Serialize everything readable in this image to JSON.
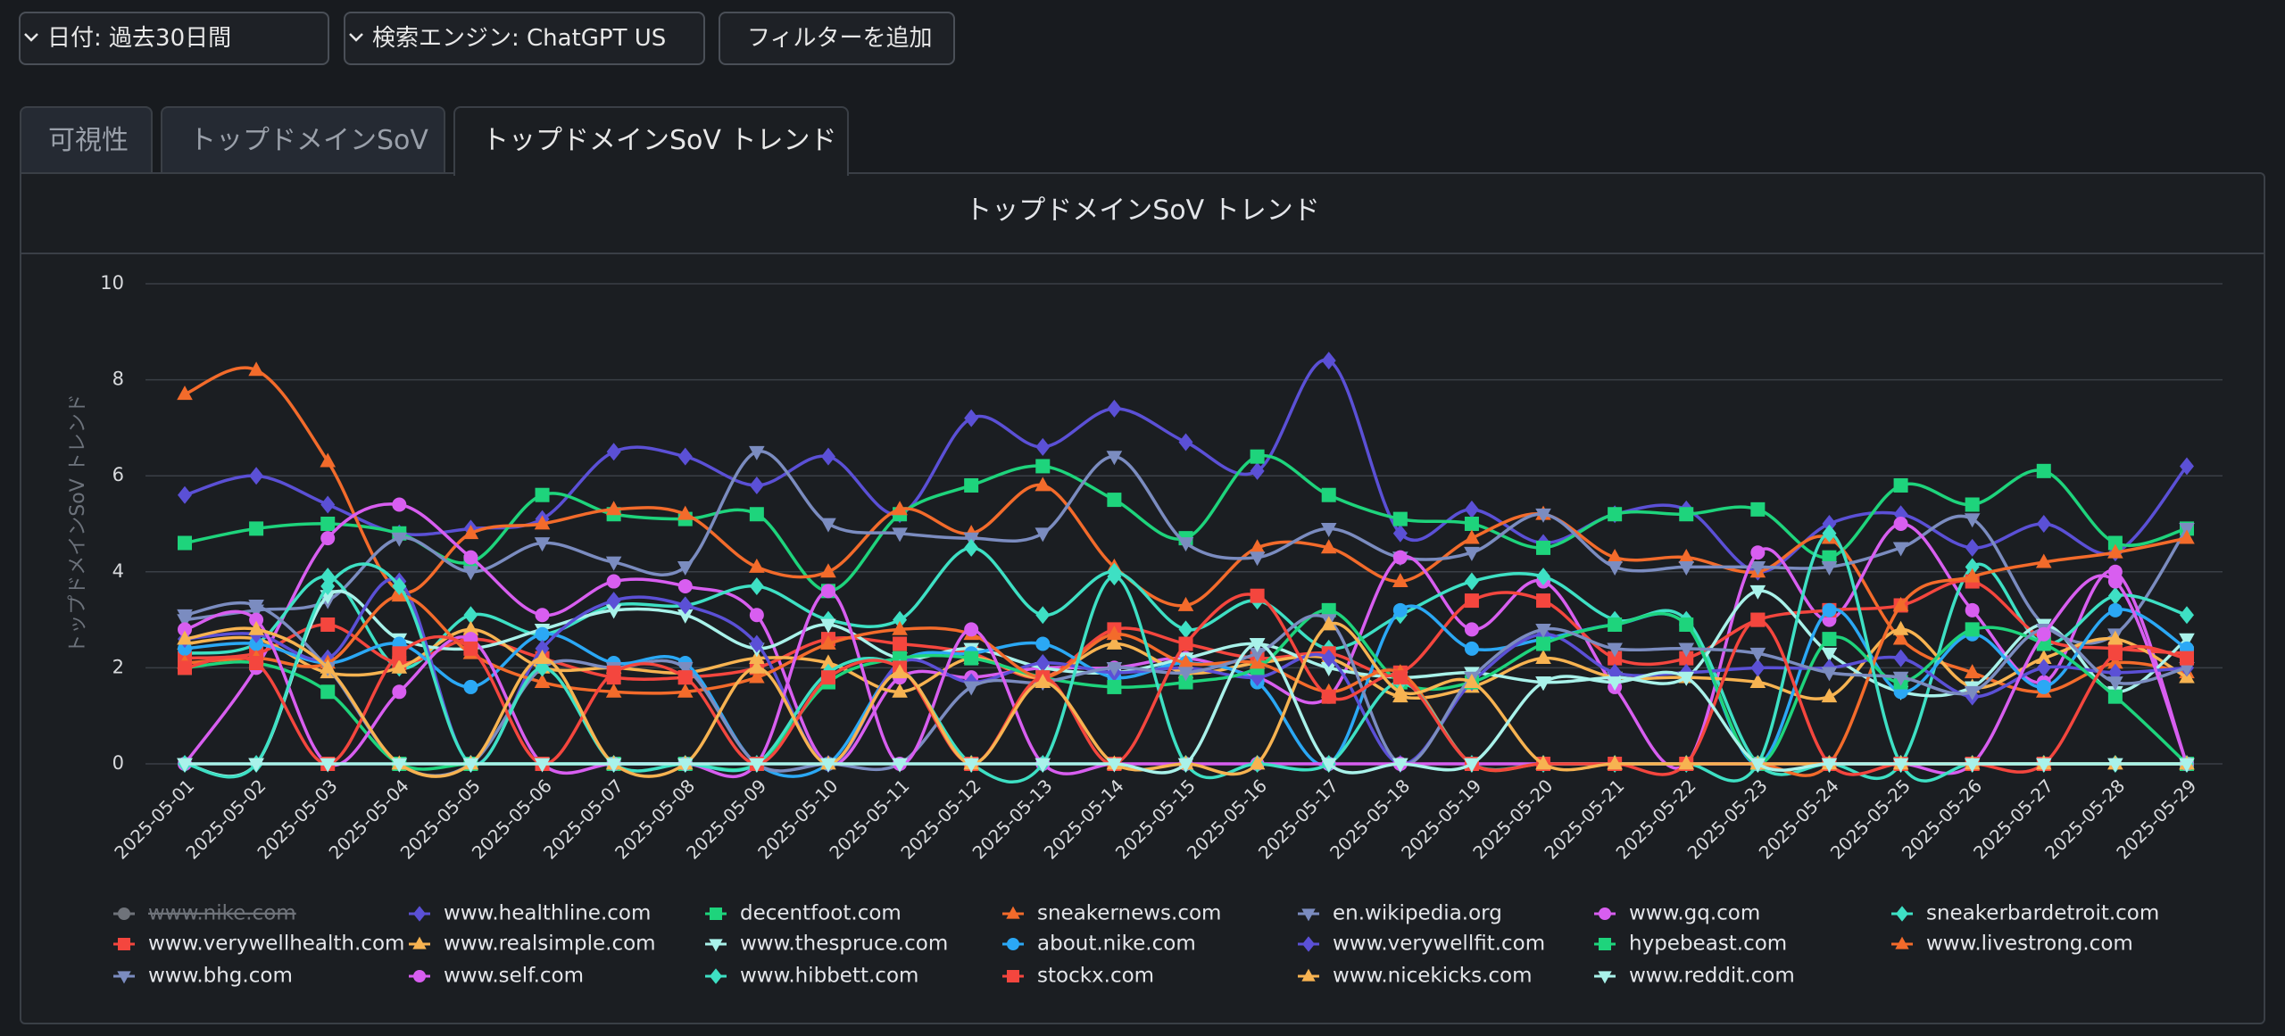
{
  "filters": [
    "日付: 過去30日間",
    "検索エンジン: ChatGPT US",
    "フィルターを追加"
  ],
  "tabs": [
    "可視性",
    "トップドメインSoV",
    "トップドメインSoV トレンド"
  ],
  "chart_data": {
    "type": "line",
    "title": "トップドメインSoV トレンド",
    "y_label": "トップドメインSoV トレンド",
    "categories": [
      "2025-05-01",
      "2025-05-02",
      "2025-05-03",
      "2025-05-04",
      "2025-05-05",
      "2025-05-06",
      "2025-05-07",
      "2025-05-08",
      "2025-05-09",
      "2025-05-10",
      "2025-05-11",
      "2025-05-12",
      "2025-05-13",
      "2025-05-14",
      "2025-05-15",
      "2025-05-16",
      "2025-05-17",
      "2025-05-18",
      "2025-05-19",
      "2025-05-20",
      "2025-05-21",
      "2025-05-22",
      "2025-05-23",
      "2025-05-24",
      "2025-05-25",
      "2025-05-26",
      "2025-05-27",
      "2025-05-28",
      "2025-05-29"
    ],
    "ylim": [
      0,
      10
    ],
    "yticks": [
      0,
      2,
      4,
      6,
      8,
      10
    ],
    "grid": true,
    "series": [
      {
        "name": "www.nike.com",
        "color": "#8a8d93",
        "marker": "circle",
        "hidden": true,
        "values": [
          null,
          null,
          null,
          null,
          null,
          null,
          null,
          null,
          null,
          null,
          null,
          null,
          null,
          null,
          null,
          null,
          null,
          null,
          null,
          null,
          null,
          null,
          null,
          null,
          null,
          null,
          null,
          null,
          null
        ]
      },
      {
        "name": "www.healthline.com",
        "color": "#5b50d6",
        "marker": "diamond",
        "values": [
          5.6,
          6.0,
          5.4,
          4.8,
          4.9,
          5.1,
          6.5,
          6.4,
          5.8,
          6.4,
          5.2,
          7.2,
          6.6,
          7.4,
          6.7,
          6.1,
          8.4,
          4.8,
          5.3,
          4.6,
          5.2,
          5.3,
          4.0,
          5.0,
          5.2,
          4.5,
          5.0,
          4.4,
          6.2
        ]
      },
      {
        "name": "decentfoot.com",
        "color": "#1ed47c",
        "marker": "square",
        "values": [
          4.6,
          4.9,
          5.0,
          4.8,
          4.2,
          5.6,
          5.2,
          5.1,
          5.2,
          3.6,
          5.2,
          5.8,
          6.2,
          5.5,
          4.7,
          6.4,
          5.6,
          5.1,
          5.0,
          4.5,
          5.2,
          5.2,
          5.3,
          4.3,
          5.8,
          5.4,
          6.1,
          4.6,
          4.9
        ]
      },
      {
        "name": "sneakernews.com",
        "color": "#f36b2b",
        "marker": "triangle-up",
        "values": [
          7.7,
          8.2,
          6.3,
          3.6,
          4.8,
          5.0,
          5.3,
          5.2,
          4.1,
          4.0,
          5.3,
          4.8,
          5.8,
          4.1,
          3.3,
          4.5,
          4.5,
          3.8,
          4.7,
          5.2,
          4.3,
          4.3,
          4.0,
          4.7,
          2.6,
          1.9,
          1.5,
          2.1,
          1.9
        ]
      },
      {
        "name": "en.wikipedia.org",
        "color": "#7b8cc0",
        "marker": "triangle-down",
        "values": [
          3.0,
          3.2,
          3.4,
          4.7,
          4.0,
          4.6,
          4.2,
          4.1,
          6.5,
          5.0,
          4.8,
          4.7,
          4.8,
          6.4,
          4.6,
          4.3,
          4.9,
          4.3,
          4.4,
          5.2,
          4.1,
          4.1,
          4.1,
          4.1,
          4.5,
          5.1,
          2.9,
          2.7,
          4.9
        ]
      },
      {
        "name": "www.gq.com",
        "color": "#d85ef0",
        "marker": "circle",
        "values": [
          0,
          2.0,
          4.7,
          5.4,
          4.3,
          3.1,
          3.8,
          3.7,
          3.1,
          0,
          1.8,
          1.8,
          2.0,
          2.0,
          2.2,
          1.8,
          1.4,
          4.3,
          2.8,
          3.8,
          1.6,
          0,
          4.4,
          3.0,
          5.0,
          3.2,
          1.7,
          4.0,
          0
        ]
      },
      {
        "name": "sneakerbardetroit.com",
        "color": "#3ee0c4",
        "marker": "diamond",
        "values": [
          2.3,
          2.5,
          3.9,
          2.0,
          3.1,
          2.7,
          3.3,
          3.3,
          3.7,
          3.0,
          3.0,
          4.5,
          3.1,
          4.0,
          2.8,
          3.4,
          2.4,
          3.1,
          3.8,
          3.9,
          3.0,
          3.0,
          0,
          0,
          0,
          4.1,
          2.5,
          3.5,
          3.1
        ]
      },
      {
        "name": "www.verywellhealth.com",
        "color": "#f4463e",
        "marker": "square",
        "values": [
          2.2,
          2.3,
          2.9,
          2.1,
          2.6,
          2.2,
          1.8,
          1.8,
          2.0,
          2.6,
          2.5,
          2.3,
          1.8,
          2.8,
          2.5,
          2.2,
          2.3,
          1.9,
          3.4,
          3.4,
          2.2,
          2.2,
          3.0,
          3.2,
          3.3,
          3.8,
          2.6,
          2.4,
          2.3
        ]
      },
      {
        "name": "www.realsimple.com",
        "color": "#f7b351",
        "marker": "triangle-up",
        "values": [
          2.5,
          2.6,
          1.9,
          2.0,
          2.8,
          2.0,
          2.0,
          1.9,
          2.2,
          2.1,
          1.5,
          2.2,
          1.8,
          2.5,
          1.9,
          2.1,
          2.2,
          1.4,
          1.6,
          2.2,
          1.8,
          1.8,
          1.7,
          1.4,
          2.8,
          1.6,
          2.2,
          2.6,
          1.8
        ]
      },
      {
        "name": "www.thespruce.com",
        "color": "#a9f2ea",
        "marker": "triangle-down",
        "values": [
          0,
          0,
          3.5,
          2.6,
          2.4,
          2.8,
          3.2,
          3.1,
          2.4,
          2.9,
          2.2,
          2.4,
          2.0,
          1.9,
          2.2,
          2.5,
          2.0,
          1.8,
          1.9,
          1.7,
          1.8,
          1.8,
          3.6,
          2.3,
          1.5,
          1.6,
          2.9,
          1.5,
          2.6
        ]
      },
      {
        "name": "about.nike.com",
        "color": "#2ba8f5",
        "marker": "circle",
        "values": [
          2.4,
          2.5,
          2.1,
          2.5,
          1.6,
          2.7,
          2.1,
          2.1,
          0,
          0,
          2.1,
          2.3,
          2.5,
          1.8,
          2.1,
          1.7,
          0,
          3.2,
          2.4,
          2.6,
          2.9,
          2.9,
          0,
          3.2,
          1.5,
          2.7,
          1.6,
          3.2,
          2.4
        ]
      },
      {
        "name": "www.verywellfit.com",
        "color": "#5b50d6",
        "marker": "diamond",
        "values": [
          2.6,
          2.7,
          2.2,
          3.8,
          0,
          2.4,
          3.4,
          3.3,
          2.5,
          0,
          2.1,
          1.7,
          2.1,
          1.9,
          2.0,
          1.8,
          2.2,
          0,
          1.7,
          2.7,
          1.9,
          1.9,
          2.0,
          2.0,
          2.2,
          1.4,
          2.0,
          1.9,
          2.0
        ]
      },
      {
        "name": "hypebeast.com",
        "color": "#1ed47c",
        "marker": "square",
        "values": [
          2.0,
          2.1,
          1.5,
          0,
          0,
          0,
          0,
          0,
          0,
          1.7,
          2.2,
          2.2,
          1.8,
          1.6,
          1.7,
          2.0,
          3.2,
          1.7,
          1.7,
          2.5,
          2.9,
          2.9,
          0,
          2.6,
          1.7,
          2.8,
          2.5,
          1.4,
          0
        ]
      },
      {
        "name": "www.livestrong.com",
        "color": "#f36b2b",
        "marker": "triangle-up",
        "values": [
          2.1,
          2.2,
          2.1,
          3.5,
          2.3,
          1.7,
          1.5,
          1.5,
          1.8,
          2.5,
          2.8,
          2.7,
          1.8,
          2.7,
          2.1,
          2.1,
          1.5,
          1.9,
          0,
          0,
          0,
          0,
          0,
          0,
          3.3,
          3.9,
          4.2,
          4.4,
          4.7
        ]
      },
      {
        "name": "www.bhg.com",
        "color": "#7b8cc0",
        "marker": "triangle-down",
        "values": [
          3.1,
          3.3,
          2.0,
          0,
          0,
          2.0,
          2.0,
          2.0,
          0,
          0,
          0,
          1.6,
          1.7,
          2.0,
          1.9,
          2.3,
          3.0,
          0,
          1.8,
          2.8,
          2.4,
          2.4,
          2.3,
          1.9,
          1.8,
          1.5,
          2.8,
          1.7,
          2.0
        ]
      },
      {
        "name": "www.self.com",
        "color": "#d85ef0",
        "marker": "circle",
        "values": [
          2.8,
          3.0,
          0,
          1.5,
          2.6,
          0,
          0,
          0,
          0,
          3.6,
          0,
          2.8,
          0,
          0,
          0,
          0,
          0,
          0,
          0,
          0,
          0,
          0,
          0,
          0,
          0,
          0,
          2.7,
          3.8,
          0
        ]
      },
      {
        "name": "www.hibbett.com",
        "color": "#3ee0c4",
        "marker": "diamond",
        "values": [
          0,
          0,
          3.7,
          3.7,
          0,
          2.0,
          0,
          0,
          0,
          1.9,
          2.0,
          0,
          0,
          3.9,
          0,
          0,
          0,
          1.7,
          0,
          0,
          0,
          0,
          0,
          4.8,
          0,
          0,
          0,
          0,
          0
        ]
      },
      {
        "name": "stockx.com",
        "color": "#f4463e",
        "marker": "square",
        "values": [
          2.0,
          2.1,
          0,
          2.3,
          2.4,
          0,
          1.9,
          1.8,
          0,
          1.8,
          2.0,
          0,
          1.8,
          0,
          2.5,
          3.5,
          1.4,
          1.8,
          0,
          0,
          0,
          0,
          3.0,
          0,
          0,
          0,
          0,
          2.3,
          2.2
        ]
      },
      {
        "name": "www.nicekicks.com",
        "color": "#f7b351",
        "marker": "triangle-up",
        "values": [
          2.6,
          2.8,
          2.0,
          0,
          0,
          2.2,
          0,
          0,
          2.0,
          0,
          1.9,
          0,
          1.7,
          0,
          0,
          0,
          2.9,
          1.5,
          1.7,
          0,
          0,
          0,
          0,
          0,
          0,
          0,
          0,
          0,
          0
        ]
      },
      {
        "name": "www.reddit.com",
        "color": "#a9f2ea",
        "marker": "triangle-down",
        "values": [
          0,
          0,
          0,
          0,
          0,
          0,
          0,
          0,
          0,
          0,
          0,
          0,
          0,
          0,
          0,
          2.5,
          0,
          0,
          0,
          1.7,
          1.7,
          1.8,
          0,
          0,
          0,
          0,
          0,
          0,
          0
        ]
      }
    ]
  }
}
